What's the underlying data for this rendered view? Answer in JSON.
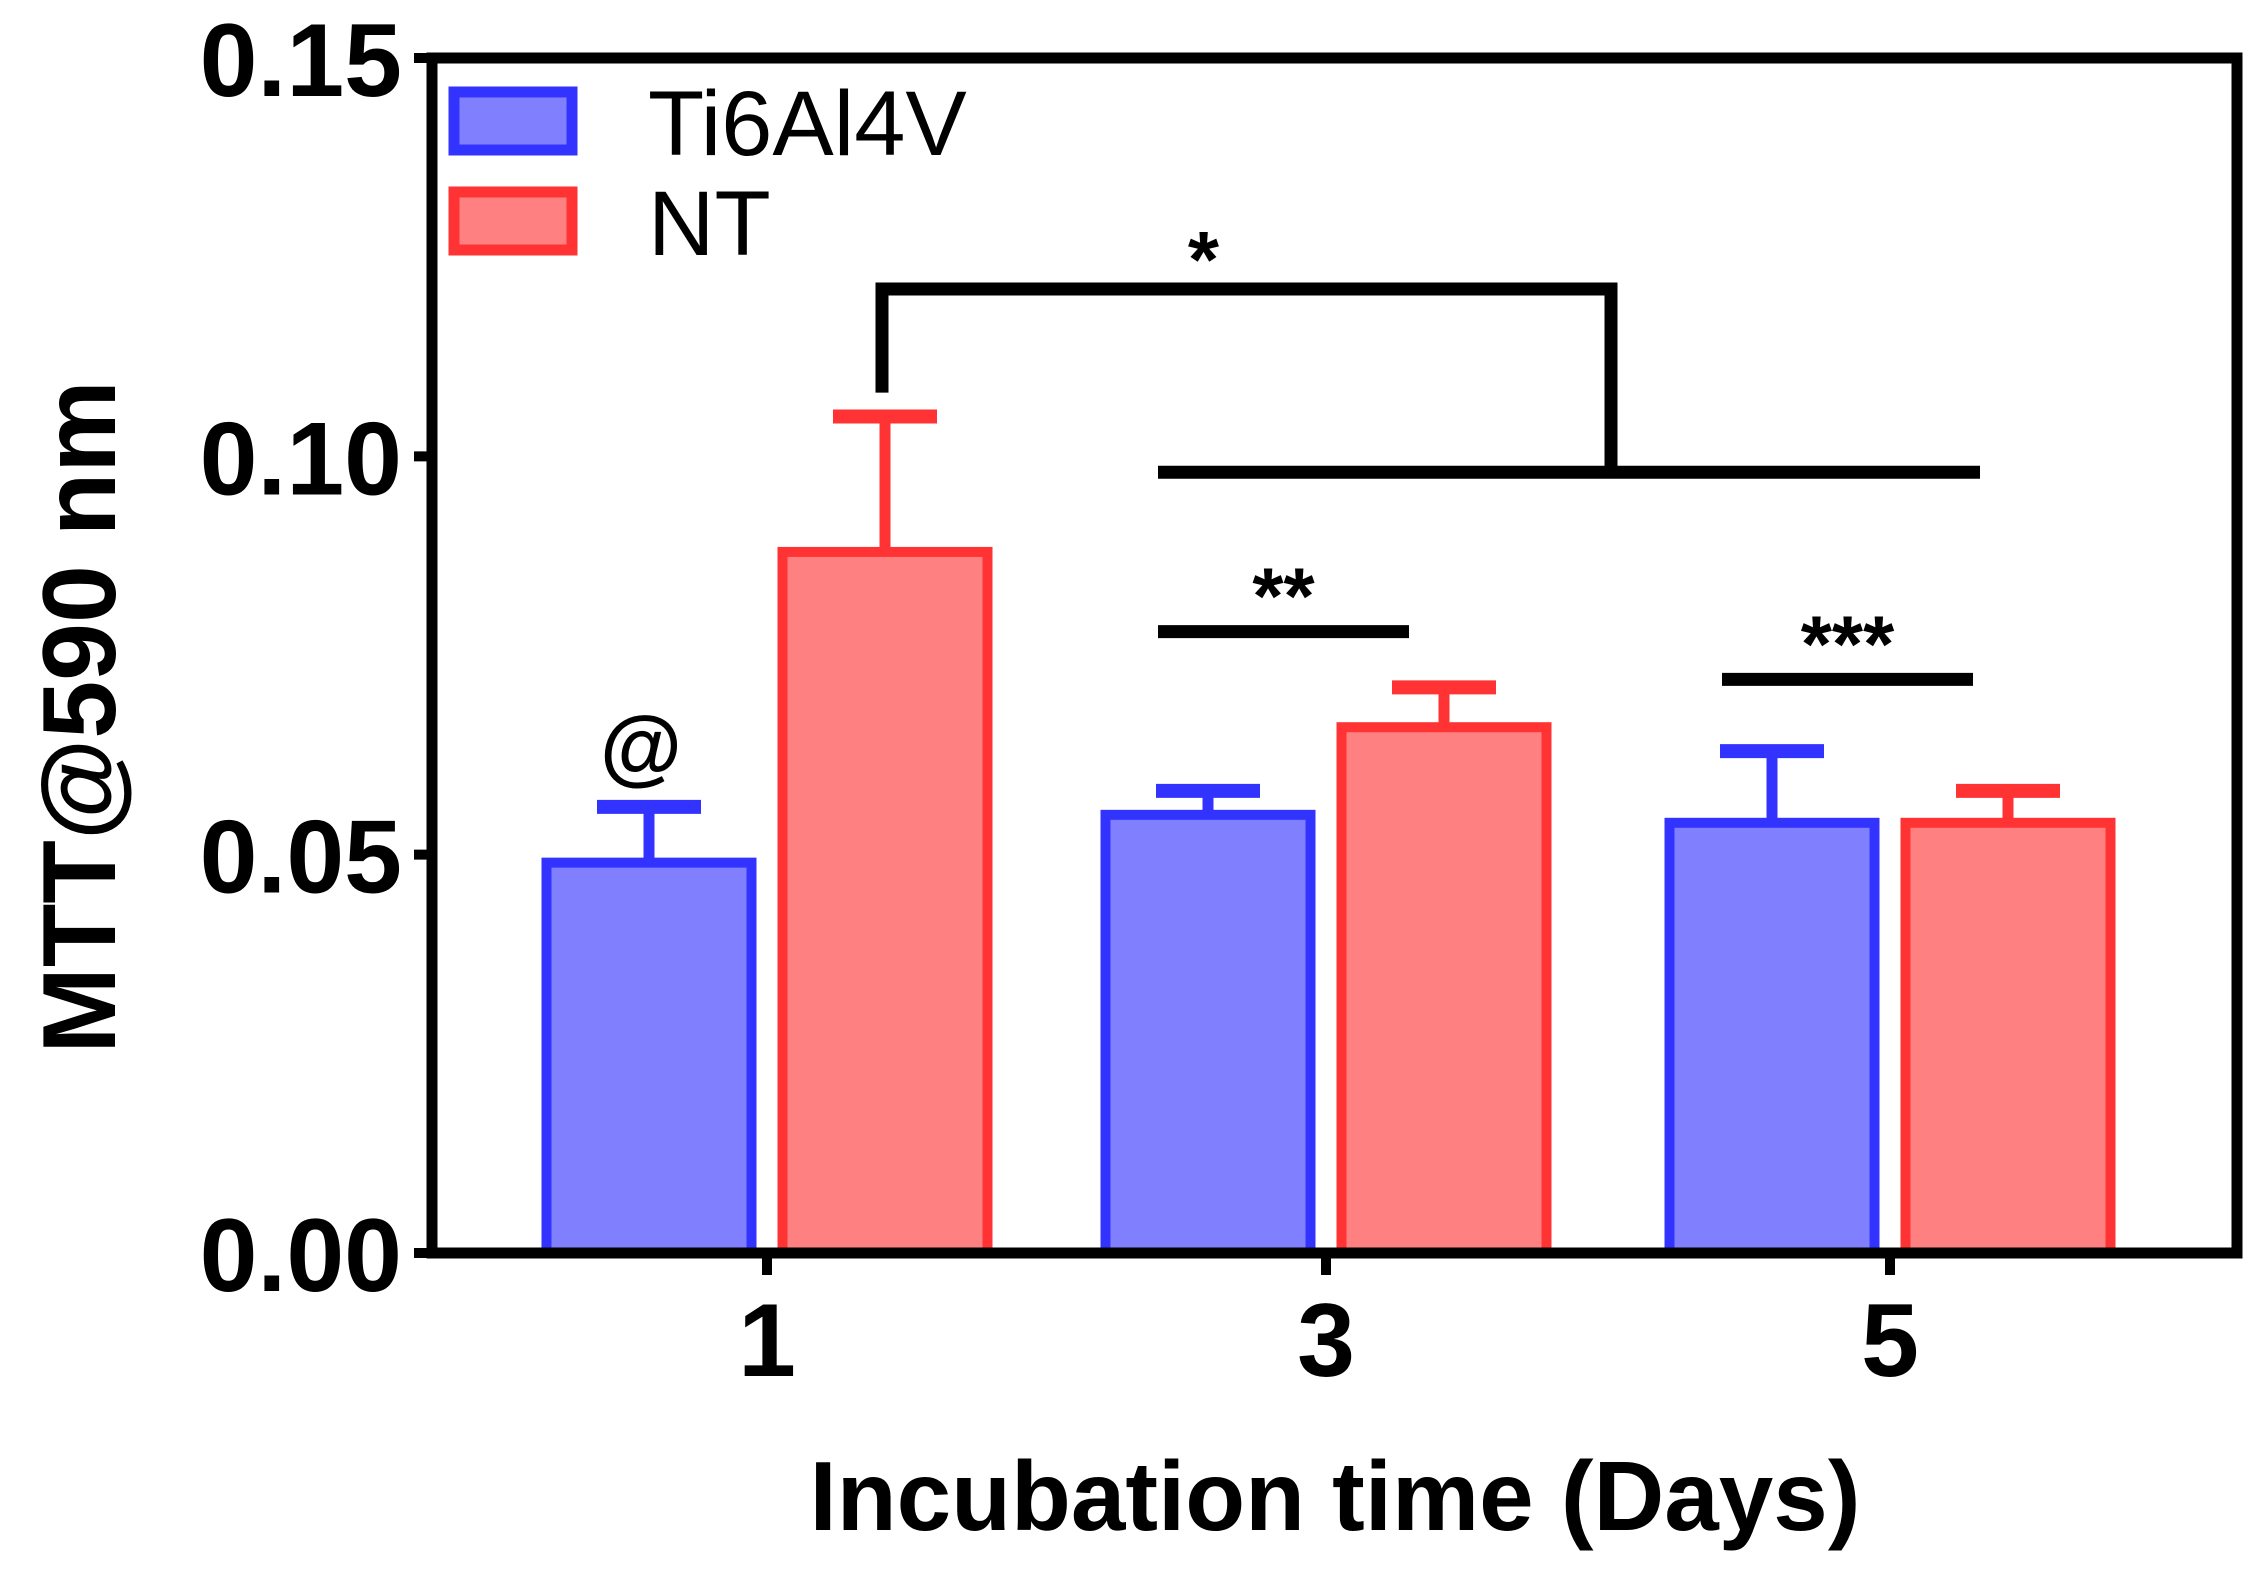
{
  "chart_data": {
    "type": "bar",
    "title": "",
    "xlabel": "Incubation time (Days)",
    "ylabel": "MTT@590 nm",
    "categories": [
      "1",
      "3",
      "5"
    ],
    "ylim": [
      0,
      0.15
    ],
    "yticks": [
      "0.00",
      "0.05",
      "0.10",
      "0.15"
    ],
    "grid": false,
    "legend_position": "top-left",
    "series": [
      {
        "name": "Ti6Al4V",
        "values": [
          0.049,
          0.055,
          0.054
        ],
        "error": [
          0.007,
          0.003,
          0.009
        ],
        "fill": "#8080ff",
        "stroke": "#3333ff"
      },
      {
        "name": "NT",
        "values": [
          0.088,
          0.066,
          0.054
        ],
        "error": [
          0.017,
          0.005,
          0.004
        ],
        "fill": "#ff8080",
        "stroke": "#ff3333"
      }
    ],
    "annotations": [
      {
        "text": "@",
        "category": 0,
        "series": 0
      },
      {
        "text": "*",
        "type": "bracket",
        "from_category": 0,
        "from_series": 1,
        "to_categories": [
          1,
          2
        ],
        "y_top": 0.121,
        "y_left": 0.108,
        "y_right": 0.098
      },
      {
        "text": "**",
        "type": "line",
        "category": 1,
        "y": 0.078
      },
      {
        "text": "***",
        "type": "line",
        "category": 2,
        "y": 0.072
      }
    ]
  }
}
